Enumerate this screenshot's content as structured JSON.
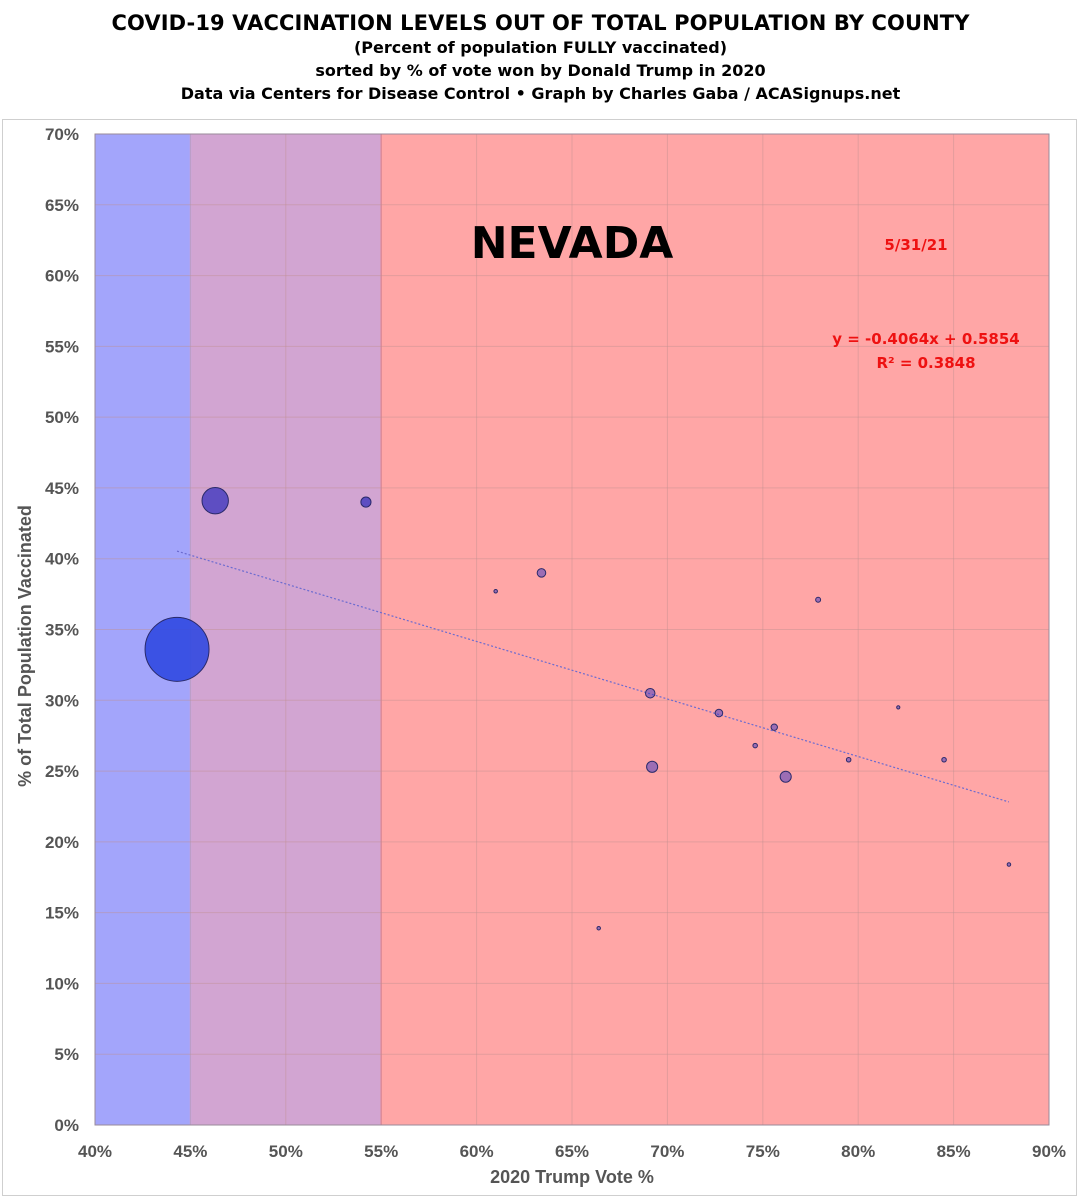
{
  "header": {
    "title": "COVID-19 VACCINATION LEVELS OUT OF TOTAL POPULATION BY COUNTY",
    "subtitle1": "(Percent of population FULLY vaccinated)",
    "subtitle2": "sorted by % of vote won by Donald Trump in 2020",
    "subtitle3": "Data via Centers for Disease Control • Graph by Charles Gaba / ACASignups.net"
  },
  "chart_data": {
    "type": "scatter",
    "title": "COVID-19 VACCINATION LEVELS OUT OF TOTAL POPULATION BY COUNTY",
    "state": "NEVADA",
    "date": "5/31/21",
    "xlabel": "2020 Trump Vote %",
    "ylabel": "% of Total Population Vaccinated",
    "xlim": [
      0.4,
      0.9
    ],
    "ylim": [
      0.0,
      0.7
    ],
    "x_ticks": [
      0.4,
      0.45,
      0.5,
      0.55,
      0.6,
      0.65,
      0.7,
      0.75,
      0.8,
      0.85,
      0.9
    ],
    "x_tick_labels": [
      "40%",
      "45%",
      "50%",
      "55%",
      "60%",
      "65%",
      "70%",
      "75%",
      "80%",
      "85%",
      "90%"
    ],
    "y_ticks": [
      0.0,
      0.05,
      0.1,
      0.15,
      0.2,
      0.25,
      0.3,
      0.35,
      0.4,
      0.45,
      0.5,
      0.55,
      0.6,
      0.65,
      0.7
    ],
    "y_tick_labels": [
      "0%",
      "5%",
      "10%",
      "15%",
      "20%",
      "25%",
      "30%",
      "35%",
      "40%",
      "45%",
      "50%",
      "55%",
      "60%",
      "65%",
      "70%"
    ],
    "grid": true,
    "bands": [
      {
        "from": 0.4,
        "to": 0.45,
        "color": "#a3a5fb"
      },
      {
        "from": 0.45,
        "to": 0.55,
        "color": "#d2a5d2"
      },
      {
        "from": 0.55,
        "to": 0.9,
        "color": "#ffa6a6"
      }
    ],
    "points": [
      {
        "x": 0.443,
        "y": 0.336,
        "size": 1000
      },
      {
        "x": 0.463,
        "y": 0.441,
        "size": 170
      },
      {
        "x": 0.542,
        "y": 0.44,
        "size": 25
      },
      {
        "x": 0.61,
        "y": 0.377,
        "size": 3
      },
      {
        "x": 0.634,
        "y": 0.39,
        "size": 18
      },
      {
        "x": 0.664,
        "y": 0.139,
        "size": 3
      },
      {
        "x": 0.691,
        "y": 0.305,
        "size": 22
      },
      {
        "x": 0.692,
        "y": 0.253,
        "size": 30
      },
      {
        "x": 0.727,
        "y": 0.291,
        "size": 14
      },
      {
        "x": 0.746,
        "y": 0.268,
        "size": 5
      },
      {
        "x": 0.756,
        "y": 0.281,
        "size": 10
      },
      {
        "x": 0.762,
        "y": 0.246,
        "size": 30
      },
      {
        "x": 0.779,
        "y": 0.371,
        "size": 6
      },
      {
        "x": 0.795,
        "y": 0.258,
        "size": 5
      },
      {
        "x": 0.821,
        "y": 0.295,
        "size": 2
      },
      {
        "x": 0.845,
        "y": 0.258,
        "size": 5
      },
      {
        "x": 0.879,
        "y": 0.184,
        "size": 3
      }
    ],
    "trendline": {
      "slope": -0.4064,
      "intercept": 0.5854,
      "x_range": [
        0.443,
        0.879
      ],
      "equation_label": "y = -0.4064x + 0.5854",
      "r2_label": "R² = 0.3848"
    },
    "colors": {
      "point_fill": "#4a3ec0",
      "largest_point_fill": "#2c47e0",
      "point_stroke": "#2a2a6a",
      "trend": "#6b6bd0",
      "grid": "#c09090",
      "annotation": "#ee1111"
    }
  }
}
